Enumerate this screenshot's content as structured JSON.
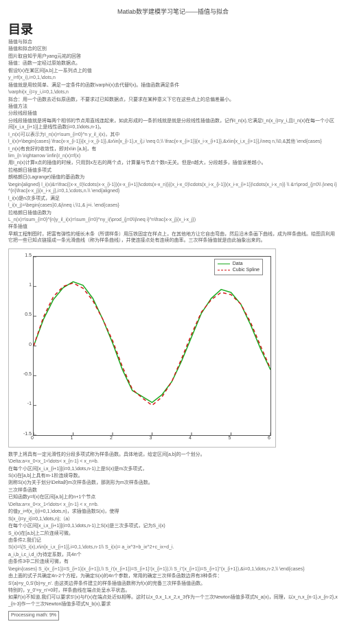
{
  "page": {
    "title": "Matlab数学建模学习笔记——插值与拟合",
    "toc_heading": "目录"
  },
  "top_block": {
    "l1": "插值与拟合",
    "l2": "插值和拟合的区别",
    "l3": "图片取⾃知乎⽤户yang元祐的回答",
    "l4": "插值：函数⼀定经过原始数据点。",
    "l5": "假设f(x)在某区间[a,b]上⼀系列点上的值",
    "l6": "y_i=f(x_i),i=0,1,\\dots,n",
    "l7": "插值就是⽤较简单、满⾜⼀定条件的函数\\varphi(x)去代替f(x)。插值函数满⾜条件",
    "l8": "\\varphi(x_i)=y_i,i=0,1,\\dots,n",
    "l9": "拟合：⽤⼀个函数去近似原函数，不要求过已知数据点，只要求在某种意义下它在这些点上的总偏差最⼩。",
    "l10": "插值⽅法",
    "l11": "分段线段插值",
    "l12": "分线段插值就是将每两个相邻的节点⽤直线连起来，如此形成的⼀条折线就是就是分段线性插值函数，记作I_n(x),它满⾜I_n(x_i)=y_i,且I_n(x)在每⼀个⼩区间[x_i,x_{i+1}]上是线性函数(i=0,1\\dots,n-1)。",
    "l13": "I_n(x)可以表示为I_n(x)=\\sum_{i=0}^n y_il_i(x)，其中",
    "l14": "l_i(x)=\\begin{cases} \\frac{x-x_{i-1}}{x_i-x_{i-1}},&x\\in[x_{i-1},x_i],i \\neq 0,\\\\ \\frac{x-x_{i+1}}{x_i-x_{i+1}},&x\\in[x_i,x_{i+1}],i\\neq n,\\\\0,&其他 \\end{cases}",
    "l15": "I_n(x)有良好的收敛性，即对x\\in [a,b]，有",
    "l16": "lim_{n \\rightarrow \\infin}I_n(x)=f(x)",
    "l17": "⽤I_n(x)计算x点的插值的时候，只⽤到x左右的两个点，计算量与节点个数n⽆关。但是n越⼤，分段越多，插值误差越⼩。",
    "l18": "拉格朗⽇插值多项式",
    "l19": "朗格朗⽇(Lagrange)插值的基函数为",
    "l20": "\\begin{aligned} l_i(x)&=\\frac{(x-x_0)\\cdots(x-x_{i-1})(x-x_{i+1})\\cdots(x-x_n)}{(x_i-x_0)\\cdots(x_i-x_{i-1})(x_i-x_{i+1})\\cdots(x_i-x_n)} \\\\ &=\\prod_{j=0\\\\ j\\neq i}^{n}\\frac{x-x_j}{x_i-x_j},i=0,1,\\cdots,n.\\\\ \\end{aligned}",
    "l21": "l_i(x)是n次多项式，满⾜",
    "l22": "l_i(x_j)=\\begin{cases}0,&j\\neq i,\\\\1,& j=i. \\end{cases}",
    "l23": "拉格朗⽇插值函数为",
    "l24": "L_n(x)=\\sum_{i=0}^{n}y_il_i(x)=\\sum_{i=0}^ny_i(\\prod_{j=0\\\\j\\neq i}^n\\frac{x-x_j}{x_i-x_j})",
    "l25": "样条插值",
    "l26": "早期⼯程制图时，把富有弹性的细长⽊条（所谓样条）⽤压铁固定在样点上，在其他地⽅让它⾃由弯曲，然后沿⽊条画下曲线，成为样条曲线。绘图员利⽤它把⼀些已知点链接成⼀条光滑曲线（称为样条曲线），并使连接点处有连续的曲率。三次样条插值就是由此抽象出来的。"
  },
  "chart": {
    "plot_bg": "#ffffff",
    "axis_color": "#555555",
    "grid_color": "#e8e8e8",
    "x_ticks": [
      0,
      1,
      2,
      3,
      4,
      5,
      6
    ],
    "y_ticks": [
      -1.5,
      -1.0,
      -0.5,
      0,
      0.5,
      1.0,
      1.5
    ],
    "xlim": [
      0,
      6
    ],
    "ylim": [
      -1.5,
      1.5
    ],
    "series1_name": "Data",
    "series1_color": "#19a81e",
    "series2_name": "Cubic Spline",
    "series2_color": "#d11919",
    "data_points": [
      [
        0.0,
        0.0
      ],
      [
        0.25,
        0.45
      ],
      [
        0.5,
        0.78
      ],
      [
        0.75,
        0.98
      ],
      [
        1.0,
        1.08
      ],
      [
        1.25,
        1.02
      ],
      [
        1.5,
        0.8
      ],
      [
        1.75,
        0.45
      ],
      [
        2.0,
        0.05
      ],
      [
        2.25,
        -0.4
      ],
      [
        2.5,
        -0.75
      ],
      [
        2.75,
        -0.85
      ],
      [
        3.0,
        -0.95
      ],
      [
        3.25,
        -0.82
      ],
      [
        3.5,
        -0.6
      ],
      [
        3.75,
        -0.25
      ],
      [
        4.0,
        0.15
      ],
      [
        4.25,
        0.55
      ],
      [
        4.5,
        0.8
      ],
      [
        4.75,
        0.95
      ],
      [
        5.0,
        0.9
      ],
      [
        5.25,
        0.7
      ],
      [
        5.5,
        0.35
      ],
      [
        5.75,
        -0.05
      ],
      [
        6.0,
        -0.4
      ]
    ]
  },
  "bottom_block": {
    "l1": "数学上将具有⼀定光滑性的分段多项式称为样条函数。具体地说，给定区间[a,b]的⼀个划分。",
    "l2": "\\Delta:a=x_0<x_1<\\dots< x_{n-1} < x_n=b.",
    "l3": "在每个⼩区间[x_i,x_{i+1}](i=0,1,\\dots,n-1)上是S(x)是m次多项式，",
    "l4": "S(x)在[a,b]上具有m-1阶连续导数。",
    "l5": "则称S(x)为关于划分\\Delta的m次样条函数，那则形为m次样条函数。",
    "l6": "三次样条函数",
    "l7": "已知函数y=f(x)在区间[a,b]上的n+1个节点",
    "l8": "\\Delta:a=x_0<x_1<\\dots< x_{n-1} < x_n=b.",
    "l9": "的值y_i=f(x_i)(i=0,1,\\dots,n)，求插值函数S(x)，使得",
    "l10": "S(x_i)=y_i(i=0,1,\\dots,n);（a）",
    "l11": "在每个⼩区间[x_i,x_{i+1}](i=0,1,\\dots,n-1)上S(x)是三次多项式，记为S_i(x)",
    "l12": " S_i(x)在[a,b]上⼆阶连续可微。",
    "l13": "由条件2,我们记",
    "l14": "S(x)=\\{S_i(x),x\\in[x_i,x_{i+1}],i=0,1,\\dots,n-1\\\\ S_i(x)= a_ix^3+b_ix^2+c_ix+d_i.",
    "l15": "a_i,b_i,c_i,d_i为待定系数，共4n个",
    "l16": "由条件3中⼆阶连续可微，有",
    "l17": "\\begin{cases} S_i(x_{i+1})=S_{i+1}(x_{i+1}),\\\\ S_i'(x_{i+1})=S_{i+1}'(x_{i+1}),\\\\ S_i''(x_{i+1})=S_{i+1}''(x_{i+1}),&i=0,1,\\dots,n-2,\\\\ \\end{cases}",
    "l18": "由上⾯的式⼦共确定4n-2个⽅程，为确定S(x)的4n个参数，常⽤的确定三次样条函数边界有3种条件：",
    "l19": "S'(a)=y_0,S'(b)=y_n'.     由这类边界条件建⽴的样条插值函数称为f(x)的完备三次样条插值函数。",
    "l20": "特别的，y_0'=y_n'=0时，样条曲线在端点处呈⽔平状态。",
    "l21": "如果f'(x)不知道,我们可以要求S'(x)与f'(x)在端点处近似相等。这时以x_0,x_1,x_2,x_3作为⼀个三次Newton插值多项式N_a(x)，同理，以x_n,x_{n-1},x_{n-2},x_{n-3}作⼀个三次Newton插值多项式N_b(x),要求",
    "footer": "Processing math: 9%"
  }
}
